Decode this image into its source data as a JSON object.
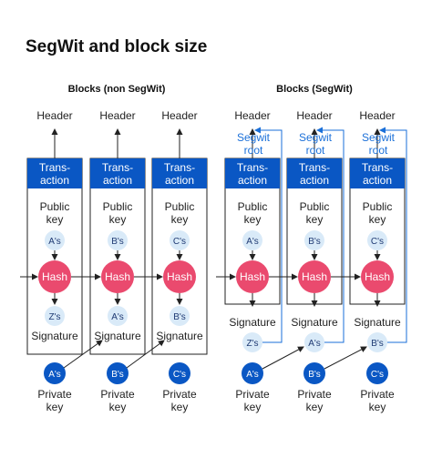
{
  "title": "SegWit and block size",
  "left_title": "Blocks (non SegWit)",
  "right_title": "Blocks (SegWit)",
  "labels": {
    "header": "Header",
    "transaction_line1": "Trans-",
    "transaction_line2": "action",
    "public_key_line1": "Public",
    "public_key_line2": "key",
    "hash": "Hash",
    "signature": "Signature",
    "private_key_line1": "Private",
    "private_key_line2": "key",
    "segwit_root_line1": "Segwit",
    "segwit_root_line2": "root"
  },
  "left_blocks": [
    {
      "pub": "A's",
      "sig": "Z's",
      "priv": "A's"
    },
    {
      "pub": "B's",
      "sig": "A's",
      "priv": "B's"
    },
    {
      "pub": "C's",
      "sig": "B's",
      "priv": "C's"
    }
  ],
  "right_blocks": [
    {
      "pub": "A's",
      "sig": "Z's",
      "priv": "A's"
    },
    {
      "pub": "B's",
      "sig": "A's",
      "priv": "B's"
    },
    {
      "pub": "C's",
      "sig": "B's",
      "priv": "C's"
    }
  ],
  "colors": {
    "bar": "#0a57c4",
    "hash": "#ea4a6e",
    "light_circle": "#d9eaf8",
    "private_circle": "#0a57c4",
    "segwit_line": "#1a6fd8",
    "outline": "#222222"
  }
}
